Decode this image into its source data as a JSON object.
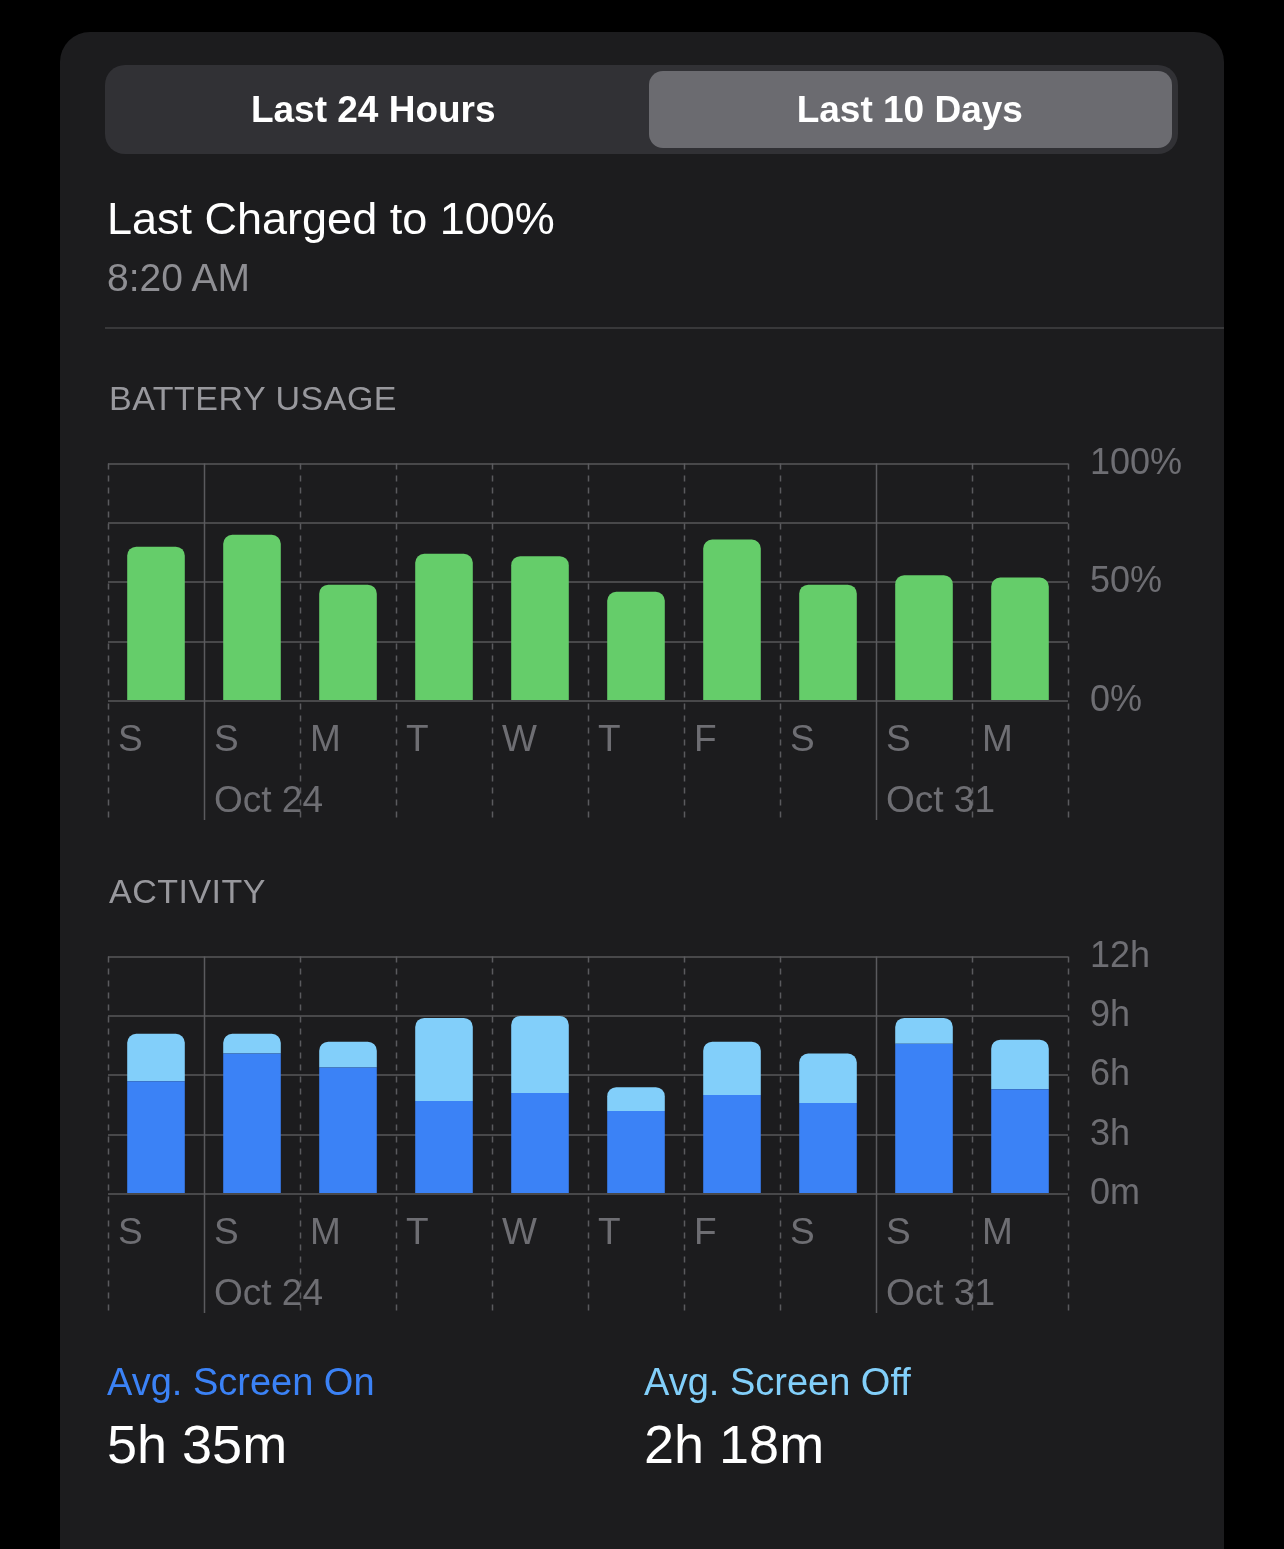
{
  "chart_data": [
    {
      "type": "other",
      "title": "Last Charged to 100%",
      "subtitle": "8:20 AM",
      "annotations": [
        "Last 24 Hours",
        "Last 10 Days"
      ]
    },
    {
      "type": "bar",
      "title": "BATTERY USAGE",
      "categories": [
        "S",
        "S\nOct 24",
        "M",
        "T",
        "W",
        "T",
        "F",
        "S",
        "S\nOct 31",
        "M"
      ],
      "values": [
        65,
        70,
        49,
        62,
        61,
        46,
        68,
        49,
        53,
        52
      ],
      "color": "#65cd6a",
      "ylim": [
        0,
        100
      ],
      "yticks": [
        {
          "value": 0,
          "label": "0%"
        },
        {
          "value": 25,
          "label": null
        },
        {
          "value": 50,
          "label": "50%"
        },
        {
          "value": 75,
          "label": null
        },
        {
          "value": 100,
          "label": "100%"
        }
      ],
      "grid": true
    },
    {
      "type": "bar",
      "title": "ACTIVITY",
      "categories": [
        "S",
        "S\nOct 24",
        "M",
        "T",
        "W",
        "T",
        "F",
        "S",
        "S\nOct 31",
        "M"
      ],
      "stacked": true,
      "series": [
        {
          "name": "Avg. Screen On",
          "color": "#3b82f6",
          "values": [
            5.7,
            7.1,
            6.4,
            4.7,
            5.1,
            4.2,
            5.0,
            4.6,
            7.6,
            5.3
          ]
        },
        {
          "name": "Avg. Screen Off",
          "color": "#82cffa",
          "values": [
            2.4,
            1.0,
            1.3,
            4.2,
            3.9,
            1.2,
            2.7,
            2.5,
            1.3,
            2.5
          ]
        }
      ],
      "ylim": [
        0,
        12
      ],
      "yticks": [
        {
          "value": 0,
          "label": "0m"
        },
        {
          "value": 3,
          "label": "3h"
        },
        {
          "value": 6,
          "label": "6h"
        },
        {
          "value": 9,
          "label": "9h"
        },
        {
          "value": 12,
          "label": "12h"
        }
      ],
      "grid": true,
      "legend": "bottom",
      "annotations": [
        "5h 35m",
        "2h 18m"
      ]
    }
  ]
}
